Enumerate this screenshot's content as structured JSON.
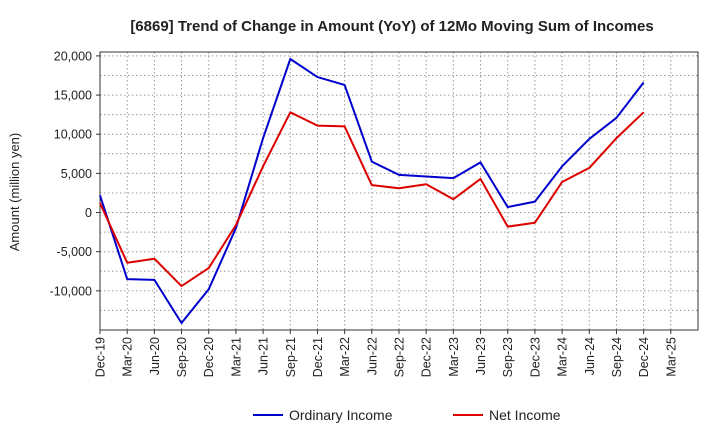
{
  "chart_data": {
    "type": "line",
    "title": "[6869]  Trend of Change in Amount (YoY) of 12Mo Moving Sum of Incomes",
    "xlabel": "",
    "ylabel": "Amount (million yen)",
    "ylim": [
      -15000,
      20500
    ],
    "yticks": [
      -10000,
      -5000,
      0,
      5000,
      10000,
      15000,
      20000
    ],
    "ytick_labels": [
      "-10,000",
      "-5,000",
      "0",
      "5,000",
      "10,000",
      "15,000",
      "20,000"
    ],
    "categories": [
      "Dec-19",
      "Mar-20",
      "Jun-20",
      "Sep-20",
      "Dec-20",
      "Mar-21",
      "Jun-21",
      "Sep-21",
      "Dec-21",
      "Mar-22",
      "Jun-22",
      "Sep-22",
      "Dec-22",
      "Mar-23",
      "Jun-23",
      "Sep-23",
      "Dec-23",
      "Mar-24",
      "Jun-24",
      "Sep-24",
      "Dec-24",
      "Mar-25"
    ],
    "series": [
      {
        "name": "Ordinary Income",
        "color": "#0000cc",
        "values": [
          2200,
          -8500,
          -8600,
          -14100,
          -9800,
          -2000,
          9500,
          19600,
          17300,
          16300,
          6500,
          4800,
          4600,
          4400,
          6400,
          700,
          1400,
          5900,
          9400,
          12100,
          16600,
          null
        ]
      },
      {
        "name": "Net Income",
        "color": "#dd0000",
        "values": [
          1200,
          -6400,
          -5900,
          -9400,
          -7100,
          -1600,
          5900,
          12800,
          11100,
          11000,
          3500,
          3100,
          3600,
          1700,
          4300,
          -1800,
          -1300,
          3900,
          5700,
          9500,
          12800,
          null
        ]
      }
    ],
    "grid": true,
    "legend_position": "bottom-center"
  }
}
